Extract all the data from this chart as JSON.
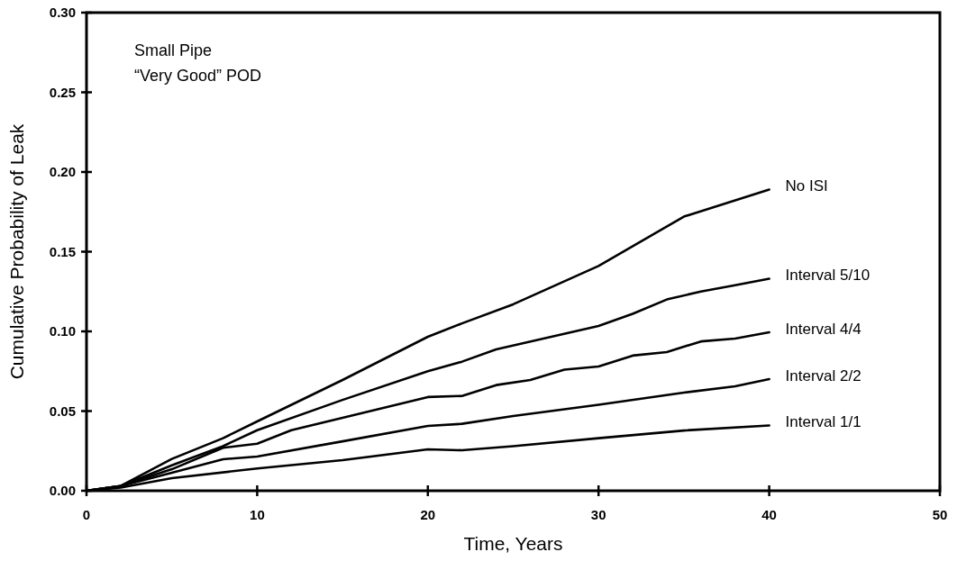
{
  "chart_data": {
    "type": "line",
    "xlabel": "Time, Years",
    "ylabel": "Cumulative Probability of Leak",
    "annotations": [
      "Small Pipe",
      "“Very Good” POD"
    ],
    "xlim": [
      0,
      50
    ],
    "xticks": [
      0,
      10,
      20,
      30,
      40,
      50
    ],
    "ylim": [
      0,
      0.3
    ],
    "yticks": [
      {
        "value": 0,
        "label": "0.00"
      },
      {
        "value": 0.05,
        "label": "0.05"
      },
      {
        "value": 0.1,
        "label": "0.10"
      },
      {
        "value": 0.15,
        "label": "0.15"
      },
      {
        "value": 0.2,
        "label": "0.20"
      },
      {
        "value": 0.25,
        "label": "0.25"
      },
      {
        "value": 0.3,
        "label": "0.30"
      }
    ],
    "grid": false,
    "legend": false,
    "marker": "none",
    "line_style": "solid",
    "series": [
      {
        "name": "No ISI",
        "color": "#000000",
        "x": [
          0,
          2,
          5,
          8,
          10,
          15,
          20,
          22,
          25,
          30,
          35,
          40
        ],
        "values": [
          0,
          0.003,
          0.02,
          0.033,
          0.0435,
          0.0695,
          0.0966,
          0.105,
          0.117,
          0.141,
          0.172,
          0.189
        ]
      },
      {
        "name": "Interval 5/10",
        "color": "#000000",
        "x": [
          0,
          2,
          5,
          8,
          10,
          15,
          20,
          22,
          24,
          30,
          32,
          34,
          36,
          38,
          40
        ],
        "values": [
          0,
          0.003,
          0.016,
          0.028,
          0.038,
          0.057,
          0.075,
          0.081,
          0.0887,
          0.1034,
          0.111,
          0.12,
          0.125,
          0.129,
          0.133
        ]
      },
      {
        "name": "Interval 4/4",
        "color": "#000000",
        "x": [
          0,
          2,
          5,
          8,
          10,
          12,
          15,
          20,
          22,
          24,
          26,
          28,
          30,
          32,
          34,
          36,
          38,
          40
        ],
        "values": [
          0,
          0.003,
          0.0135,
          0.027,
          0.0295,
          0.038,
          0.0458,
          0.0588,
          0.0595,
          0.0663,
          0.0695,
          0.076,
          0.078,
          0.0848,
          0.087,
          0.0937,
          0.0955,
          0.0994
        ]
      },
      {
        "name": "Interval 2/2",
        "color": "#000000",
        "x": [
          0,
          2,
          5,
          8,
          10,
          15,
          20,
          22,
          25,
          30,
          35,
          38,
          40
        ],
        "values": [
          0,
          0.003,
          0.0113,
          0.0198,
          0.0215,
          0.031,
          0.0407,
          0.042,
          0.0469,
          0.054,
          0.0616,
          0.0655,
          0.07
        ]
      },
      {
        "name": "Interval 1/1",
        "color": "#000000",
        "x": [
          0,
          2,
          5,
          10,
          15,
          20,
          22,
          25,
          30,
          35,
          40
        ],
        "values": [
          0,
          0.002,
          0.0079,
          0.014,
          0.0192,
          0.026,
          0.0254,
          0.028,
          0.033,
          0.0378,
          0.041
        ]
      }
    ]
  }
}
